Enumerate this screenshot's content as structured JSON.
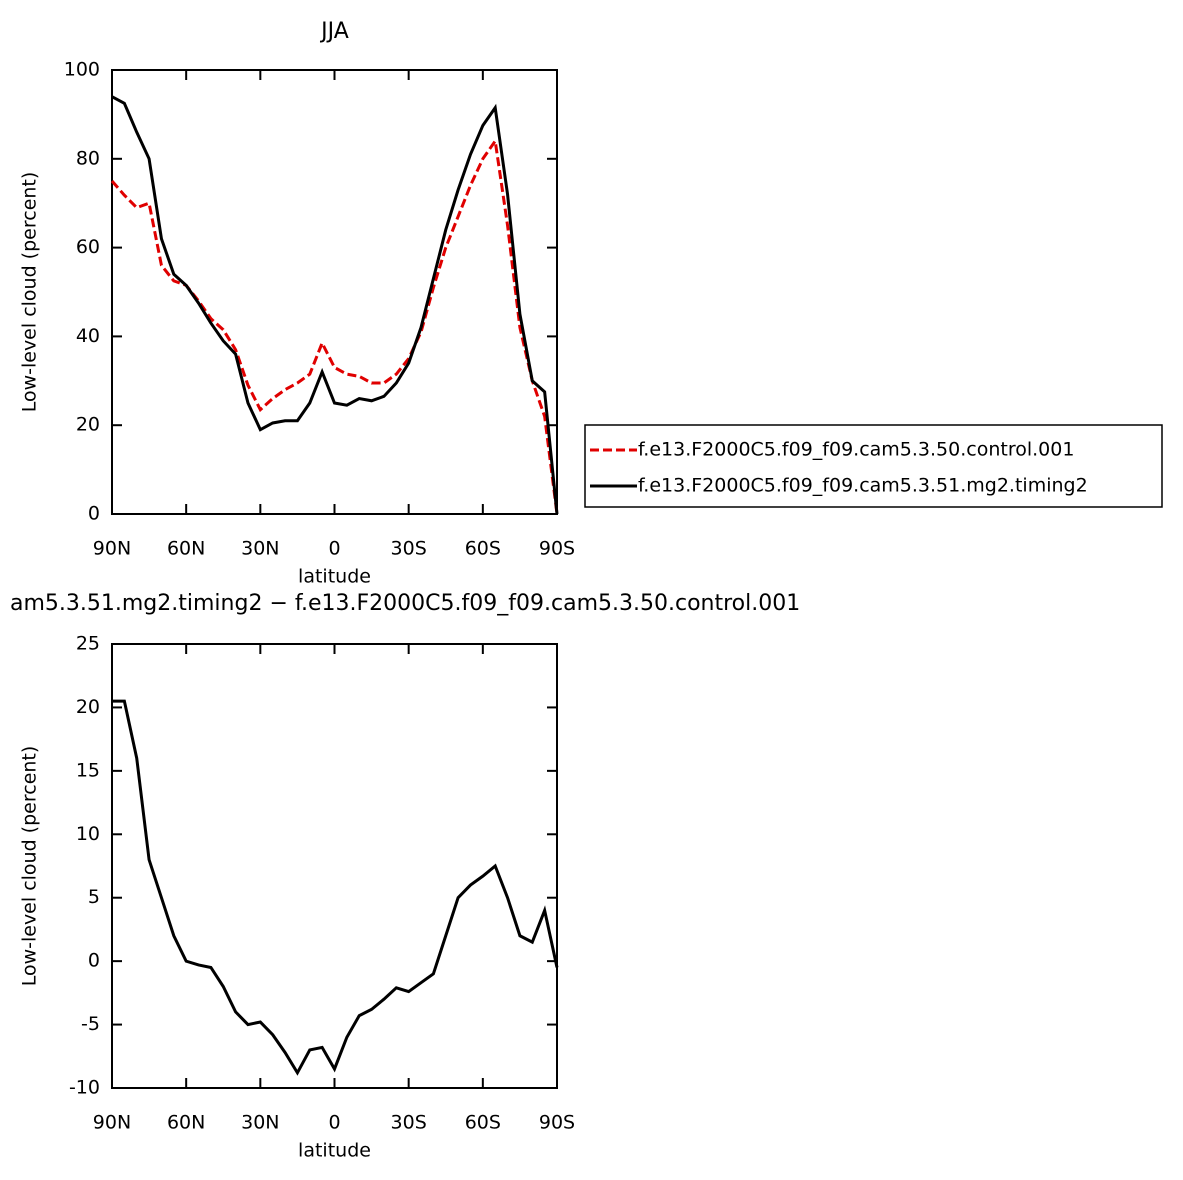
{
  "chart_data": [
    {
      "type": "line",
      "title": "JJA",
      "xlabel": "latitude",
      "ylabel": "Low-level cloud (percent)",
      "x": [
        90,
        85,
        80,
        75,
        70,
        65,
        60,
        55,
        50,
        45,
        40,
        35,
        30,
        25,
        20,
        15,
        10,
        5,
        0,
        -5,
        -10,
        -15,
        -20,
        -25,
        -30,
        -35,
        -40,
        -45,
        -50,
        -55,
        -60,
        -65,
        -70,
        -75,
        -80,
        -85,
        -90
      ],
      "xlim": [
        90,
        -90
      ],
      "xticks": [
        {
          "value": 90,
          "label": "90N"
        },
        {
          "value": 60,
          "label": "60N"
        },
        {
          "value": 30,
          "label": "30N"
        },
        0,
        {
          "value": -30,
          "label": "30S"
        },
        {
          "value": -60,
          "label": "60S"
        },
        {
          "value": -90,
          "label": "90S"
        }
      ],
      "ylim": [
        0,
        100
      ],
      "yticks": [
        0,
        20,
        40,
        60,
        80,
        100
      ],
      "legend": "right",
      "series": [
        {
          "name": "f.e13.F2000C5.f09_f09.cam5.3.50.control.001",
          "color": "#e00000",
          "dash": true,
          "values": [
            75,
            71.8,
            69,
            70,
            56,
            52.5,
            51.5,
            48,
            44,
            41.5,
            37,
            29,
            23.5,
            26,
            28,
            29.5,
            31.5,
            38.5,
            33,
            31.5,
            31,
            29.5,
            29.5,
            31.5,
            35,
            41,
            51,
            60,
            67,
            74,
            80,
            84,
            65,
            42,
            30,
            22,
            0
          ]
        },
        {
          "name": "f.e13.F2000C5.f09_f09.cam5.3.51.mg2.timing2",
          "color": "#000000",
          "dash": false,
          "values": [
            94,
            92.5,
            86,
            80,
            62,
            54,
            51.5,
            47.5,
            43,
            39,
            36,
            25,
            19,
            20.5,
            21,
            21,
            25,
            32,
            25,
            24.5,
            26,
            25.5,
            26.5,
            29.5,
            34,
            42,
            53,
            64,
            73,
            81,
            87.5,
            91.5,
            72,
            45,
            30,
            27.5,
            0
          ]
        }
      ]
    },
    {
      "type": "line",
      "title": "am5.3.51.mg2.timing2 − f.e13.F2000C5.f09_f09.cam5.3.50.control.001",
      "xlabel": "latitude",
      "ylabel": "Low-level cloud (percent)",
      "x": [
        90,
        85,
        80,
        75,
        70,
        65,
        60,
        55,
        50,
        45,
        40,
        35,
        30,
        25,
        20,
        15,
        10,
        5,
        0,
        -5,
        -10,
        -15,
        -20,
        -25,
        -30,
        -35,
        -40,
        -45,
        -50,
        -55,
        -60,
        -65,
        -70,
        -75,
        -80,
        -85,
        -90
      ],
      "xlim": [
        90,
        -90
      ],
      "xticks": [
        {
          "value": 90,
          "label": "90N"
        },
        {
          "value": 60,
          "label": "60N"
        },
        {
          "value": 30,
          "label": "30N"
        },
        0,
        {
          "value": -30,
          "label": "30S"
        },
        {
          "value": -60,
          "label": "60S"
        },
        {
          "value": -90,
          "label": "90S"
        }
      ],
      "ylim": [
        -10,
        25
      ],
      "yticks": [
        -10,
        -5,
        0,
        5,
        10,
        15,
        20,
        25
      ],
      "series": [
        {
          "color": "#000000",
          "dash": false,
          "values": [
            20.5,
            20.5,
            16,
            8,
            5,
            2,
            0,
            -0.3,
            -0.5,
            -2,
            -4,
            -5,
            -4.8,
            -5.8,
            -7.2,
            -8.8,
            -7,
            -6.8,
            -8.5,
            -6,
            -4.3,
            -3.8,
            -3,
            -2.1,
            -2.4,
            -1.7,
            -1,
            2,
            5,
            6,
            6.7,
            7.5,
            5,
            2,
            1.5,
            4,
            -0.5
          ]
        }
      ]
    }
  ]
}
